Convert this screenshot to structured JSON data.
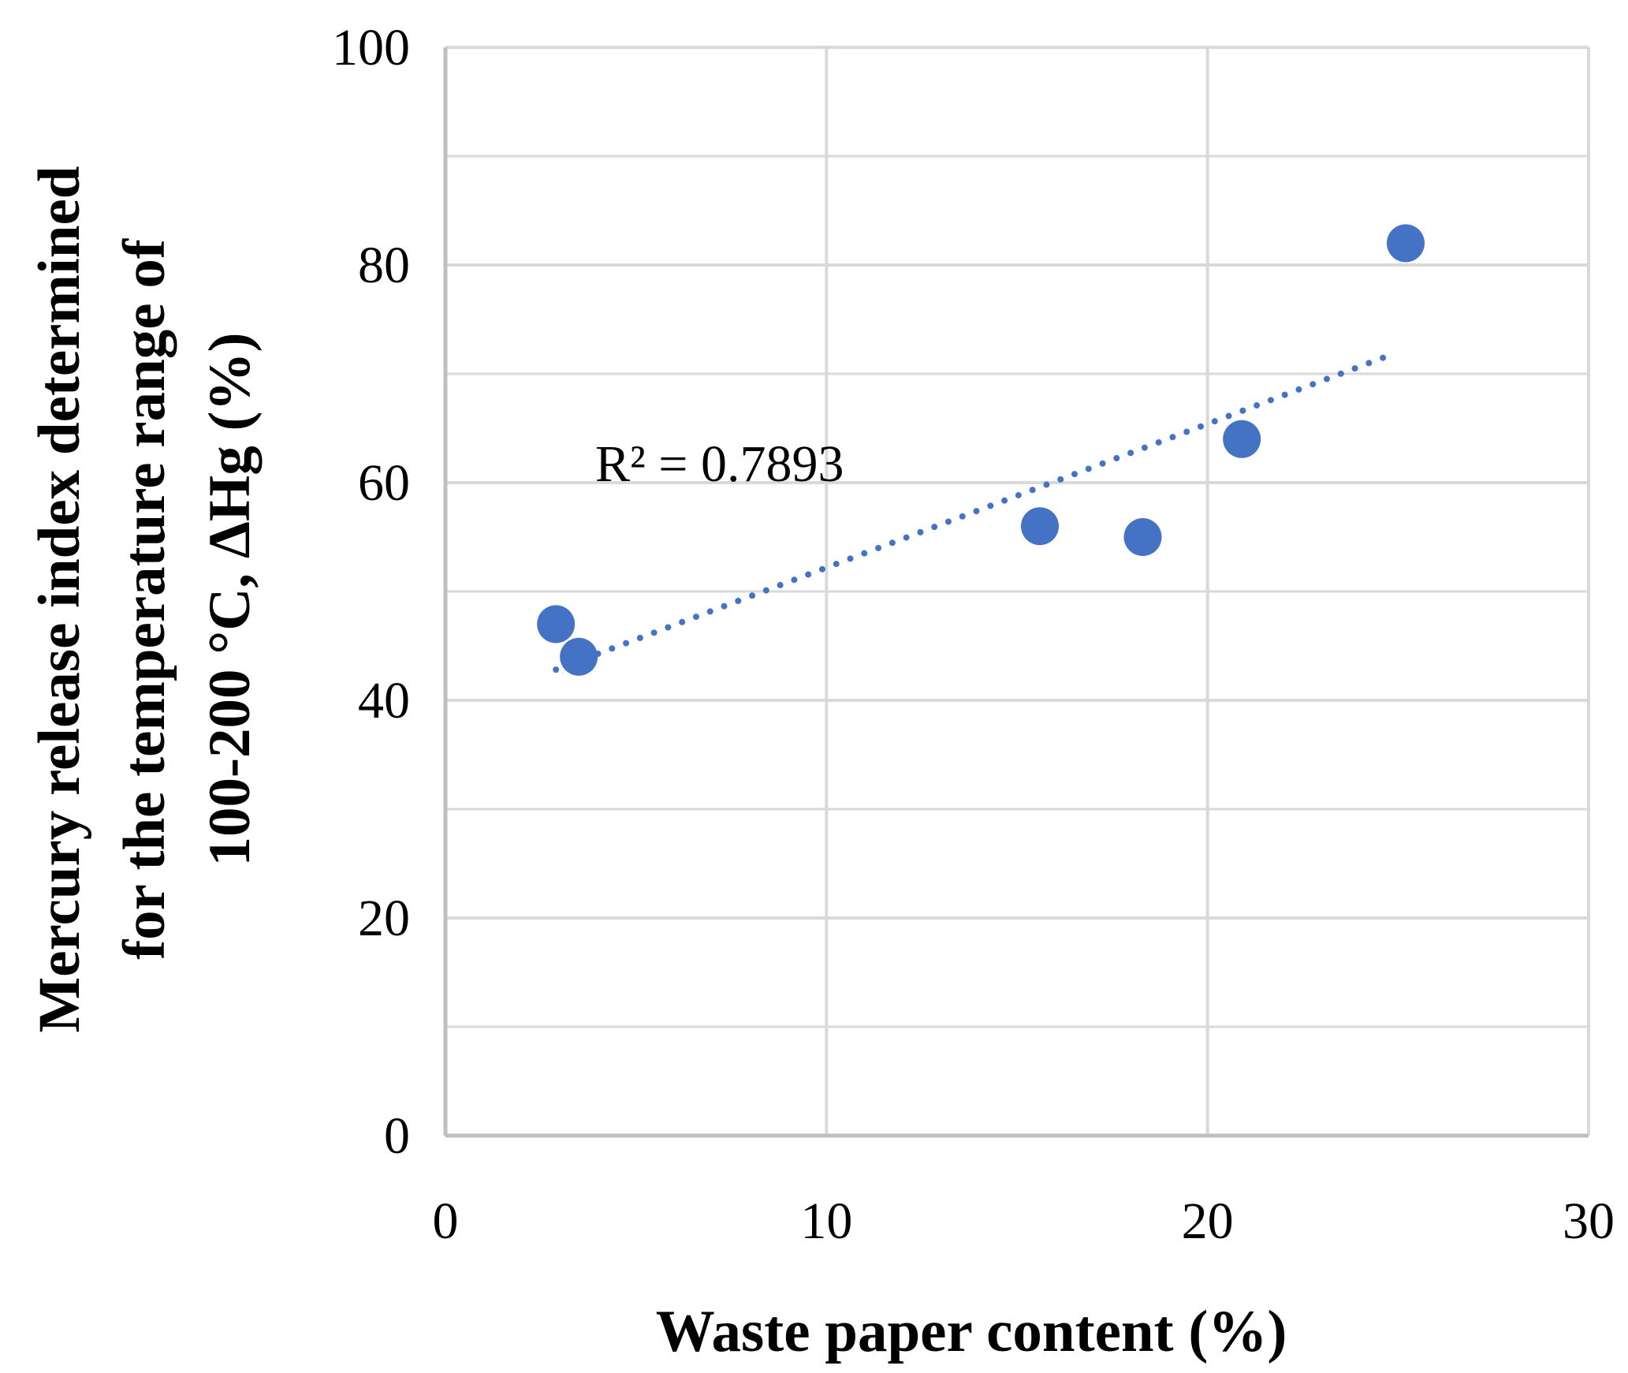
{
  "chart_data": {
    "type": "scatter",
    "title": "",
    "xlabel": "Waste paper content (%)",
    "ylabel_lines": [
      "Mercury release index determined",
      "for the temperature range of",
      "100-200 °C, ΔHg  (%)"
    ],
    "xlim": [
      0,
      30
    ],
    "ylim": [
      0,
      100
    ],
    "x_ticks": [
      "0",
      "10",
      "20",
      "30"
    ],
    "y_ticks": [
      "0",
      "20",
      "40",
      "60",
      "80",
      "100"
    ],
    "x_major_step": 10,
    "y_major_step": 20,
    "y_minor_step": 10,
    "grid": true,
    "legend": "none",
    "series": [
      {
        "color": "#4472C4",
        "points": [
          {
            "x": 2.9,
            "y": 47
          },
          {
            "x": 3.5,
            "y": 44
          },
          {
            "x": 15.6,
            "y": 56
          },
          {
            "x": 18.3,
            "y": 55
          },
          {
            "x": 20.9,
            "y": 64
          },
          {
            "x": 25.2,
            "y": 82
          }
        ]
      }
    ],
    "trendline": {
      "type": "linear",
      "style": "dotted",
      "color": "#4472C4",
      "x_start": 2.9,
      "x_end": 24.8,
      "r_squared_label": "R² = 0.7893"
    },
    "colors": {
      "grid": "#d9d9d9",
      "axis": "#bfbfbf",
      "marker": "#4472C4"
    }
  }
}
